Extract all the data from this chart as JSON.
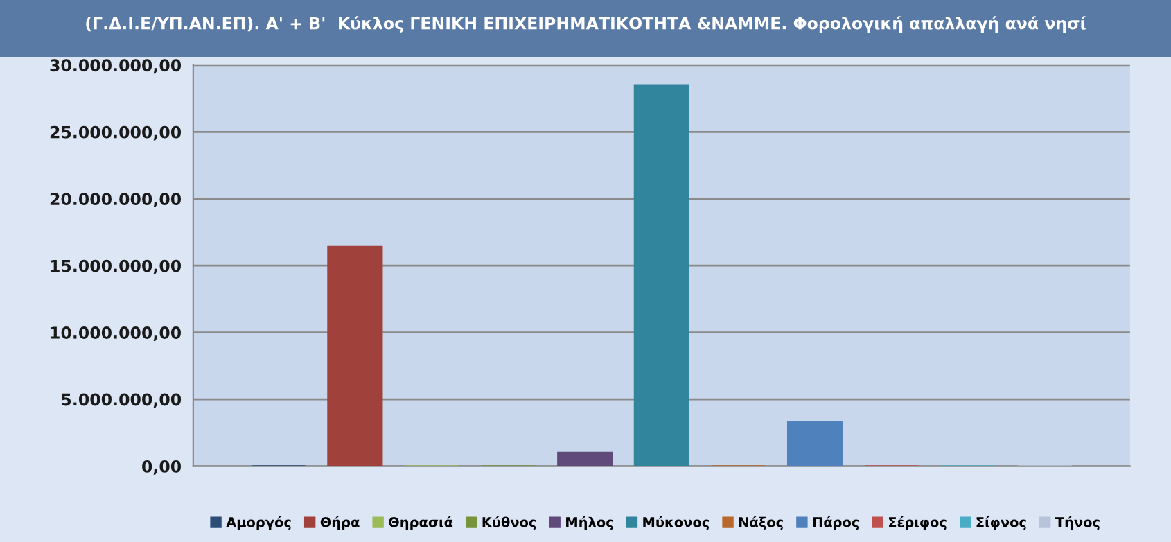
{
  "chart_data": {
    "type": "bar",
    "title": "(Γ.Δ.Ι.Ε/ΥΠ.ΑΝ.ΕΠ). Α' + Β'  Κύκλος ΓΕΝΙΚΗ ΕΠΙΧΕΙΡΗΜΑΤΙΚΟΤΗΤΑ &ΝΑΜΜΕ. Φορολογική απαλλαγή ανά νησί",
    "categories": [
      null
    ],
    "series": [
      {
        "name": "Αμοργός",
        "color": "#2c4d75",
        "values": [
          0
        ]
      },
      {
        "name": "Θήρα",
        "color": "#a0413c",
        "values": [
          16400000
        ]
      },
      {
        "name": "Θηρασιά",
        "color": "#9bbb59",
        "values": [
          0
        ]
      },
      {
        "name": "Κύθνος",
        "color": "#77933c",
        "values": [
          0
        ]
      },
      {
        "name": "Μήλος",
        "color": "#604a7b",
        "values": [
          1000000
        ]
      },
      {
        "name": "Μύκονος",
        "color": "#31859c",
        "values": [
          28500000
        ]
      },
      {
        "name": "Νάξος",
        "color": "#b8682a",
        "values": [
          0
        ]
      },
      {
        "name": "Πάρος",
        "color": "#4f81bd",
        "values": [
          3300000
        ]
      },
      {
        "name": "Σέριφος",
        "color": "#c0504d",
        "values": [
          0
        ]
      },
      {
        "name": "Σίφνος",
        "color": "#4bacc6",
        "values": [
          0
        ]
      },
      {
        "name": "Τήνος",
        "color": "#b7c3d9",
        "values": [
          0
        ]
      }
    ],
    "ylim": [
      0,
      30000000
    ],
    "yticks": [
      {
        "value": 0,
        "label": "0,00"
      },
      {
        "value": 5000000,
        "label": "5.000.000,00"
      },
      {
        "value": 10000000,
        "label": "10.000.000,00"
      },
      {
        "value": 15000000,
        "label": "15.000.000,00"
      },
      {
        "value": 20000000,
        "label": "20.000.000,00"
      },
      {
        "value": 25000000,
        "label": "25.000.000,00"
      },
      {
        "value": 30000000,
        "label": "30.000.000,00"
      }
    ],
    "grid": "y",
    "legend": "bottom",
    "tick_labels": "y"
  }
}
